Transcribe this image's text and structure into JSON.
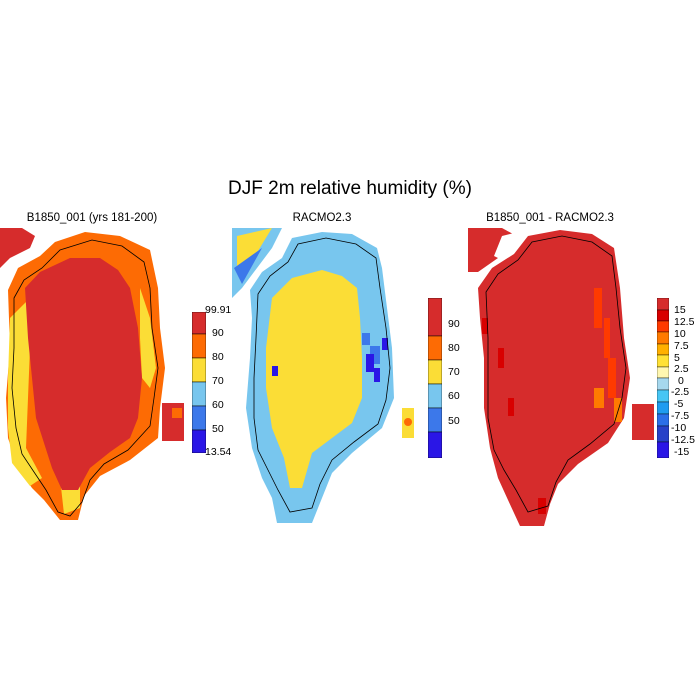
{
  "figure": {
    "title": "DJF 2m relative humidity (%)"
  },
  "panels": [
    {
      "id": "model",
      "title": "B1850_001 (yrs 181-200)",
      "colorbar": {
        "colors": [
          "#2a16e6",
          "#3c78ea",
          "#78c6ee",
          "#fbdd36",
          "#fd6b04",
          "#d62c2c"
        ],
        "labels": [
          "13.54",
          "50",
          "60",
          "70",
          "80",
          "90",
          "99.91"
        ],
        "label_at_boundaries": true
      }
    },
    {
      "id": "racmo",
      "title": "RACMO2.3",
      "colorbar": {
        "colors": [
          "#2a16e6",
          "#3c78ea",
          "#78c6ee",
          "#fbdd36",
          "#fd6b04",
          "#d62c2c"
        ],
        "labels": [
          "50",
          "60",
          "70",
          "80",
          "90"
        ],
        "label_at_boundaries": false
      }
    },
    {
      "id": "diff",
      "title": "B1850_001 - RACMO2.3",
      "colorbar": {
        "colors": [
          "#2a16e6",
          "#2741c8",
          "#2b6fe8",
          "#1f9cf0",
          "#46c6f4",
          "#a6d8ee",
          "#fff7b0",
          "#ffe135",
          "#ffb000",
          "#ff7a00",
          "#ff3a00",
          "#d80000",
          "#d62c2c"
        ],
        "labels": [
          "-15",
          "-12.5",
          "-10",
          "-7.5",
          "-5",
          "-2.5",
          "0",
          "2.5",
          "5",
          "7.5",
          "10",
          "12.5",
          "15"
        ],
        "label_at_boundaries": false
      }
    }
  ]
}
